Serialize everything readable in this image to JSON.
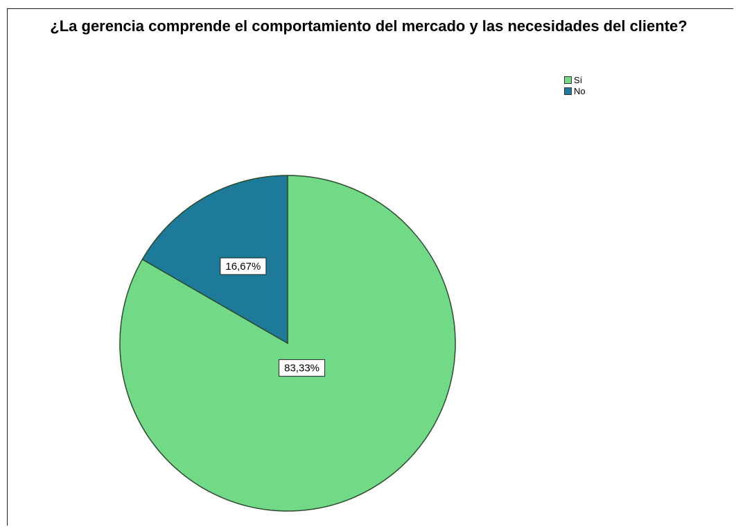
{
  "chart_data": {
    "type": "pie",
    "title": "¿La gerencia comprende el comportamiento del mercado y las necesidades del cliente?",
    "categories": [
      "Sí",
      "No"
    ],
    "values": [
      83.33,
      16.67
    ],
    "data_labels": [
      "83,33%",
      "16,67%"
    ],
    "colors": [
      "#72d986",
      "#1e7a99"
    ],
    "legend_position": "top-right"
  }
}
